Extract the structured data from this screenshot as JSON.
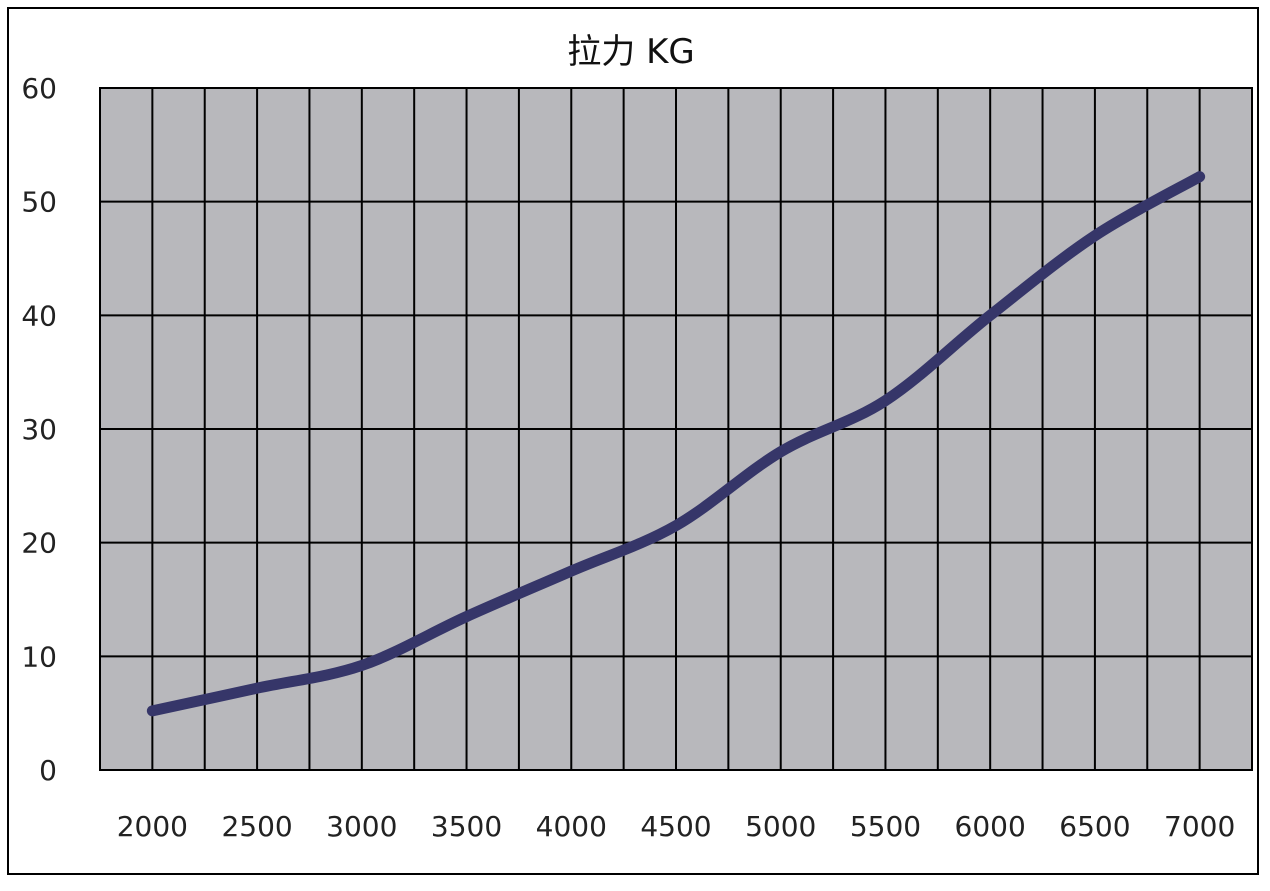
{
  "chart_data": {
    "type": "line",
    "title": "拉力 KG",
    "xlabel": "",
    "ylabel": "",
    "x": [
      2000,
      2500,
      3000,
      3500,
      4000,
      4500,
      5000,
      5500,
      6000,
      6500,
      7000
    ],
    "x_tick_labels": [
      "2000",
      "2500",
      "3000",
      "3500",
      "4000",
      "4500",
      "5000",
      "5500",
      "6000",
      "6500",
      "7000"
    ],
    "y_tick_labels": [
      "0",
      "10",
      "20",
      "30",
      "40",
      "50",
      "60"
    ],
    "xlim": [
      1750,
      7250
    ],
    "ylim": [
      0,
      60
    ],
    "grid": true,
    "legend": "none",
    "series": [
      {
        "values": [
          5.2,
          7.2,
          9.2,
          13.5,
          17.5,
          21.5,
          28,
          32.5,
          40,
          47,
          52.2
        ],
        "color": "#363669"
      }
    ],
    "colors": {
      "plot_background": "#b8b8bc",
      "grid": "#000000",
      "line": "#363669"
    }
  }
}
